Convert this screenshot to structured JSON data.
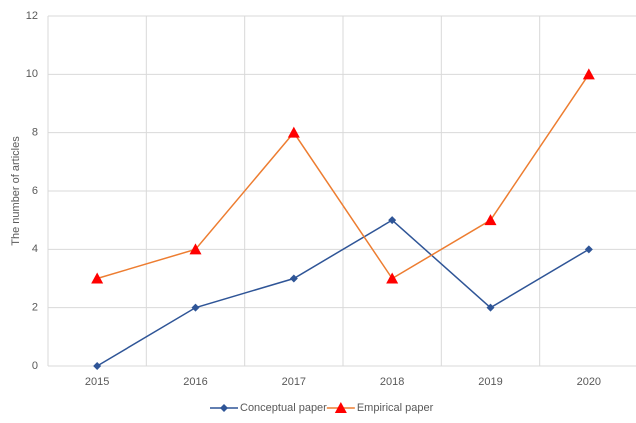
{
  "chart_data": {
    "type": "line",
    "y_label": "The number of articles",
    "categories": [
      "2015",
      "2016",
      "2017",
      "2018",
      "2019",
      "2020"
    ],
    "series": [
      {
        "name": "Conceptual paper",
        "color": "#2f5597",
        "marker": "diamond",
        "marker_color": "#2f5597",
        "values": [
          0,
          2,
          3,
          5,
          2,
          4
        ]
      },
      {
        "name": "Empirical paper",
        "color": "#ed7d31",
        "marker": "triangle",
        "marker_color": "#ff0000",
        "values": [
          3,
          4,
          8,
          3,
          5,
          10
        ]
      }
    ],
    "ylim": [
      0,
      12
    ],
    "yticks": [
      0,
      2,
      4,
      6,
      8,
      10,
      12
    ],
    "grid": true,
    "legend": "bottom"
  }
}
